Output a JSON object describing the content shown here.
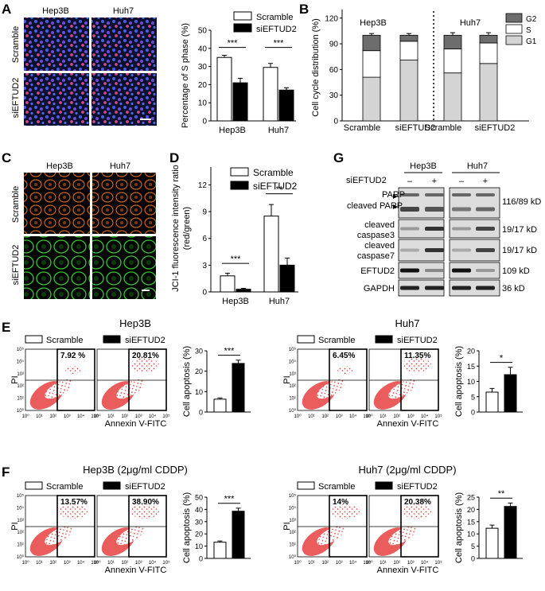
{
  "panels": {
    "A": {
      "letter": "A",
      "image_cols": [
        "Hep3B",
        "Huh7"
      ],
      "image_rows": [
        "Scramble",
        "siEFTUD2"
      ],
      "legend": [
        "Scramble",
        "siEFTUD2"
      ],
      "ylabel": "Percentage of S phase (%)",
      "sig": [
        "***",
        "***"
      ]
    },
    "B": {
      "letter": "B",
      "groups": [
        "Hep3B",
        "Huh7"
      ],
      "xlabels": [
        "Scramble",
        "siEFTUD2",
        "Scramble",
        "siEFTUD2"
      ],
      "ylabel": "Cell cycle distribution (%)",
      "legend": [
        "G2",
        "S",
        "G1"
      ]
    },
    "C": {
      "letter": "C",
      "image_cols": [
        "Hep3B",
        "Huh7"
      ],
      "image_rows": [
        "Scramble",
        "siEFTUD2"
      ]
    },
    "D": {
      "letter": "D",
      "legend": [
        "Scramble",
        "siEFTUD2"
      ],
      "ylabel_1": "JCI-1 fluorescence intensity ratio",
      "ylabel_2": "(red/green)",
      "sig": [
        "***",
        "**"
      ]
    },
    "G": {
      "letter": "G",
      "cols": [
        "Hep3B",
        "Huh7"
      ],
      "row_label": "siEFTUD2",
      "signs": [
        "–",
        "+",
        "–",
        "+"
      ],
      "bands": [
        "PARP",
        "cleaved PARP",
        "cleaved",
        "caspase3",
        "cleaved",
        "caspase7",
        "EFTUD2",
        "GAPDH"
      ],
      "sizes": [
        "116/89 kD",
        "19/17 kD",
        "19/17 kD",
        "109 kD",
        "36 kD"
      ]
    },
    "E": {
      "letter": "E",
      "left": {
        "title": "Hep3B",
        "legend": [
          "Scramble",
          "siEFTUD2"
        ],
        "percents": [
          "7.92 %",
          "20.81%"
        ],
        "ylabel": "Cell apoptosis (%)",
        "sig": "***"
      },
      "right": {
        "title": "Huh7",
        "legend": [
          "Scramble",
          "siEFTUD2"
        ],
        "percents": [
          "6.45%",
          "11.35%"
        ],
        "ylabel": "Cell apoptosis (%)",
        "sig": "*"
      },
      "axis_x": "Annexin V-FITC",
      "axis_y": "PI"
    },
    "F": {
      "letter": "F",
      "left": {
        "title": "Hep3B (2μg/ml CDDP)",
        "legend": [
          "Scramble",
          "siEFTUD2"
        ],
        "percents": [
          "13.57%",
          "38.90%"
        ],
        "ylabel": "Cell apoptosis (%)",
        "sig": "***"
      },
      "right": {
        "title": "Huh7 (2μg/ml CDDP)",
        "legend": [
          "Scramble",
          "siEFTUD2"
        ],
        "percents": [
          "14%",
          "20.38%"
        ],
        "ylabel": "Cell apoptosis (%)",
        "sig": "**"
      },
      "axis_x": "Annexin V-FITC",
      "axis_y": "PI"
    }
  },
  "colors": {
    "scramble": "#ffffff",
    "si": "#000000",
    "g2": "#6d6d6d",
    "s": "#ffffff",
    "g1": "#d4d4d4",
    "dot": "#e83a3a"
  },
  "chart_data": [
    {
      "type": "bar",
      "panel": "A",
      "categories": [
        "Hep3B",
        "Huh7"
      ],
      "series": [
        {
          "name": "Scramble",
          "values": [
            35,
            29.5
          ],
          "err": [
            1.2,
            2.2
          ]
        },
        {
          "name": "siEFTUD2",
          "values": [
            21,
            17
          ],
          "err": [
            2.5,
            1.3
          ]
        }
      ],
      "ylabel": "Percentage of S phase (%)",
      "ylim": [
        0,
        50
      ],
      "yticks": [
        0,
        10,
        20,
        30,
        40,
        50
      ]
    },
    {
      "type": "bar",
      "panel": "B",
      "stacked": true,
      "categories": [
        "Scramble",
        "siEFTUD2",
        "Scramble",
        "siEFTUD2"
      ],
      "series": [
        {
          "name": "G1",
          "values": [
            51,
            71,
            56,
            67
          ]
        },
        {
          "name": "S",
          "values": [
            31,
            22,
            28,
            24
          ]
        },
        {
          "name": "G2",
          "values": [
            18,
            7,
            16,
            9
          ]
        }
      ],
      "ylabel": "Cell cycle distribution (%)",
      "ylim": [
        0,
        130
      ],
      "yticks": [
        0,
        30,
        60,
        90,
        120
      ]
    },
    {
      "type": "bar",
      "panel": "D",
      "categories": [
        "Hep3B",
        "Huh7"
      ],
      "series": [
        {
          "name": "Scramble",
          "values": [
            1.8,
            8.5
          ],
          "err": [
            0.3,
            1.3
          ]
        },
        {
          "name": "siEFTUD2",
          "values": [
            0.3,
            3.0
          ],
          "err": [
            0.1,
            0.8
          ]
        }
      ],
      "ylim": [
        0,
        14
      ],
      "yticks": [
        0,
        3,
        6,
        9,
        12
      ]
    },
    {
      "type": "bar",
      "panel": "E-Hep3B",
      "categories": [
        "Scramble",
        "siEFTUD2"
      ],
      "values": [
        6.3,
        23.8
      ],
      "err": [
        0.6,
        1.6
      ],
      "ylabel": "Cell apoptosis (%)",
      "ylim": [
        0,
        30
      ],
      "yticks": [
        0,
        10,
        20,
        30
      ]
    },
    {
      "type": "bar",
      "panel": "E-Huh7",
      "categories": [
        "Scramble",
        "siEFTUD2"
      ],
      "values": [
        6.5,
        12.2
      ],
      "err": [
        1.2,
        2.4
      ],
      "ylabel": "Cell apoptosis (%)",
      "ylim": [
        0,
        20
      ],
      "yticks": [
        0,
        5,
        10,
        15,
        20
      ]
    },
    {
      "type": "bar",
      "panel": "F-Hep3B",
      "categories": [
        "Scramble",
        "siEFTUD2"
      ],
      "values": [
        13.2,
        38.5
      ],
      "err": [
        1.0,
        2.5
      ],
      "ylabel": "Cell apoptosis (%)",
      "ylim": [
        0,
        50
      ],
      "yticks": [
        0,
        10,
        20,
        30,
        40,
        50
      ]
    },
    {
      "type": "bar",
      "panel": "F-Huh7",
      "categories": [
        "Scramble",
        "siEFTUD2"
      ],
      "values": [
        12.3,
        21.2
      ],
      "err": [
        1.3,
        1.4
      ],
      "ylabel": "Cell apoptosis (%)",
      "ylim": [
        0,
        25
      ],
      "yticks": [
        0,
        5,
        10,
        15,
        20,
        25
      ]
    }
  ]
}
